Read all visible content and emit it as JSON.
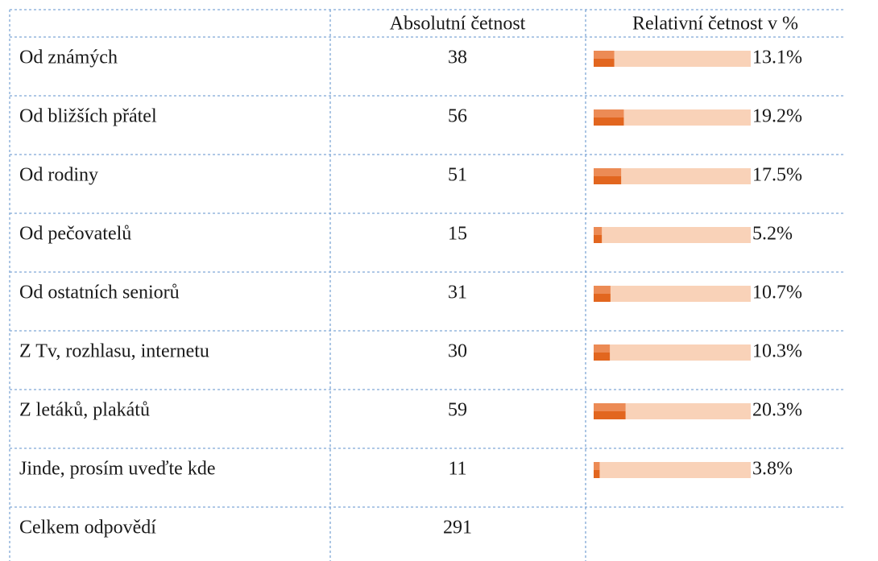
{
  "table": {
    "headers": [
      "Absolutní četnost",
      "Relativní četnost v %"
    ],
    "rows": [
      {
        "label": "Od známých",
        "count": 38,
        "percent": 13.1,
        "percent_label": "13.1%"
      },
      {
        "label": "Od bližších přátel",
        "count": 56,
        "percent": 19.2,
        "percent_label": "19.2%"
      },
      {
        "label": "Od rodiny",
        "count": 51,
        "percent": 17.5,
        "percent_label": "17.5%"
      },
      {
        "label": "Od pečovatelů",
        "count": 15,
        "percent": 5.2,
        "percent_label": "5.2%"
      },
      {
        "label": "Od ostatních seniorů",
        "count": 31,
        "percent": 10.7,
        "percent_label": "10.7%"
      },
      {
        "label": "Z Tv, rozhlasu, internetu",
        "count": 30,
        "percent": 10.3,
        "percent_label": "10.3%"
      },
      {
        "label": "Z letáků, plakátů",
        "count": 59,
        "percent": 20.3,
        "percent_label": "20.3%"
      },
      {
        "label": "Jinde, prosím uveďte kde",
        "count": 11,
        "percent": 3.8,
        "percent_label": "3.8%"
      }
    ],
    "total": {
      "label": "Celkem odpovědí",
      "count": 291
    }
  }
}
